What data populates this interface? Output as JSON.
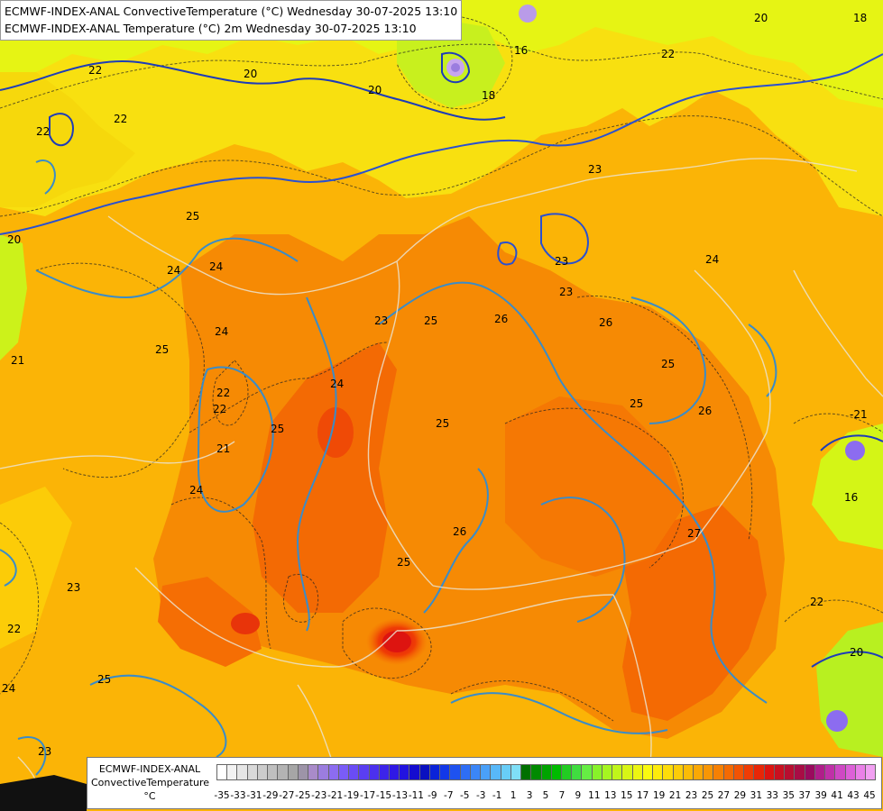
{
  "title": {
    "line1": "ECMWF-INDEX-ANAL ConvectiveTemperature (°C) Wednesday 30-07-2025 13:10",
    "line2": "ECMWF-INDEX-ANAL Temperature (°C) 2m Wednesday 30-07-2025 13:10"
  },
  "legend": {
    "model": "ECMWF-INDEX-ANAL",
    "variable": "ConvectiveTemperature",
    "unit": "°C",
    "ticks": [
      "-35",
      "-33",
      "-31",
      "-29",
      "-27",
      "-25",
      "-23",
      "-21",
      "-19",
      "-17",
      "-15",
      "-13",
      "-11",
      "-9",
      "-7",
      "-5",
      "-3",
      "-1",
      "1",
      "3",
      "5",
      "7",
      "9",
      "11",
      "13",
      "15",
      "17",
      "19",
      "21",
      "23",
      "25",
      "27",
      "29",
      "31",
      "33",
      "35",
      "37",
      "39",
      "41",
      "43",
      "45"
    ],
    "colors": [
      "#ffffff",
      "#f2f2f2",
      "#e6e6e6",
      "#d9d9d9",
      "#cccccc",
      "#bfbfbf",
      "#b3b3b3",
      "#a6a6a6",
      "#9d94a8",
      "#a98bc9",
      "#9b7ddf",
      "#8c6cf0",
      "#7a5cf7",
      "#6a4cf5",
      "#5a3ef2",
      "#4b30ee",
      "#3c24ea",
      "#2f18e5",
      "#2213e0",
      "#140ccf",
      "#0a10c0",
      "#0b23d9",
      "#1238e8",
      "#1e52f0",
      "#2e6ef5",
      "#3b86f7",
      "#4aa0f8",
      "#58b8f8",
      "#68cdf7",
      "#7fdff7",
      "#007000",
      "#008a00",
      "#00a300",
      "#00bb00",
      "#22cc22",
      "#40dd40",
      "#66ee44",
      "#88f22a",
      "#a6f520",
      "#c0f51a",
      "#d8f515",
      "#ecf512",
      "#fafa10",
      "#fdeb0c",
      "#fddc0a",
      "#fccc08",
      "#fbbb06",
      "#faa805",
      "#f89604",
      "#f68003",
      "#f46a03",
      "#f25304",
      "#ef3c05",
      "#e82607",
      "#dd1410",
      "#c91020",
      "#b80e30",
      "#a80c45",
      "#9a0a5e",
      "#b01e8a",
      "#c030a8",
      "#cf48c4",
      "#dd60d8",
      "#ea80e8",
      "#f2a0f2"
    ]
  },
  "map_labels": [
    {
      "text": "22"
    },
    {
      "text": "20"
    },
    {
      "text": "20"
    },
    {
      "text": "18"
    },
    {
      "text": "16"
    },
    {
      "text": "20"
    },
    {
      "text": "18"
    },
    {
      "text": "22"
    },
    {
      "text": "22"
    },
    {
      "text": "23"
    },
    {
      "text": "25"
    },
    {
      "text": "24"
    },
    {
      "text": "24"
    },
    {
      "text": "23"
    },
    {
      "text": "24"
    },
    {
      "text": "23"
    },
    {
      "text": "22"
    },
    {
      "text": "26"
    },
    {
      "text": "25"
    },
    {
      "text": "25"
    },
    {
      "text": "25"
    },
    {
      "text": "25"
    },
    {
      "text": "24"
    },
    {
      "text": "22"
    },
    {
      "text": "21"
    },
    {
      "text": "25"
    },
    {
      "text": "24"
    },
    {
      "text": "26"
    },
    {
      "text": "25"
    },
    {
      "text": "26"
    },
    {
      "text": "27"
    },
    {
      "text": "23"
    },
    {
      "text": "22"
    },
    {
      "text": "24"
    },
    {
      "text": "25"
    },
    {
      "text": "23"
    },
    {
      "text": "-21"
    },
    {
      "text": "16"
    },
    {
      "text": "20"
    },
    {
      "text": "22"
    },
    {
      "text": "24"
    },
    {
      "text": "26"
    },
    {
      "text": "22"
    },
    {
      "text": "20"
    },
    {
      "text": "25"
    },
    {
      "text": "23"
    },
    {
      "text": "21"
    }
  ]
}
